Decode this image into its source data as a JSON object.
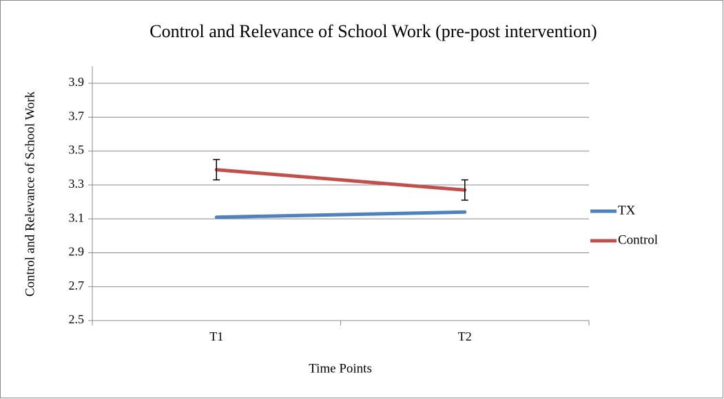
{
  "chart_data": {
    "type": "line",
    "title": "Control and Relevance of School Work (pre-post intervention)",
    "x_label": "Time Points",
    "y_label": "Control and Relevance of School Work",
    "categories": [
      "T1",
      "T2"
    ],
    "series": [
      {
        "name": "TX",
        "color": "#4f81bd",
        "values": [
          3.11,
          3.14
        ]
      },
      {
        "name": "Control",
        "color": "#c0504d",
        "values": [
          3.39,
          3.27
        ],
        "errors": [
          0.06,
          0.06
        ]
      }
    ],
    "ylim": [
      2.5,
      4.0
    ],
    "yticks": [
      2.5,
      2.7,
      2.9,
      3.1,
      3.3,
      3.5,
      3.7,
      3.9
    ],
    "grid": true,
    "legend": "right"
  }
}
